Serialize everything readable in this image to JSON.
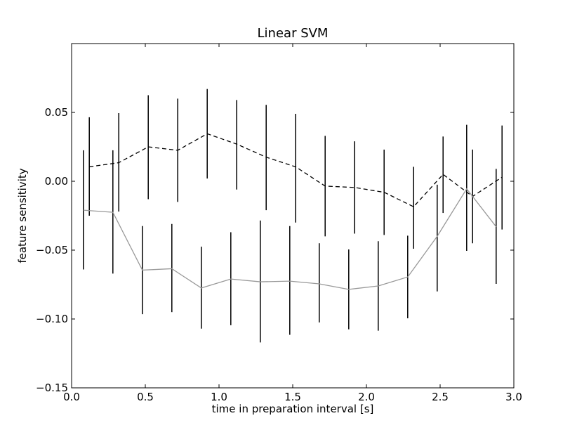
{
  "chart_data": {
    "type": "line",
    "title": "Linear SVM",
    "xlabel": "time in preparation interval [s]",
    "ylabel": "feature sensitivity",
    "xlim": [
      0.0,
      3.0
    ],
    "ylim": [
      -0.15,
      0.1
    ],
    "xticks": [
      0.0,
      0.5,
      1.0,
      1.5,
      2.0,
      2.5,
      3.0
    ],
    "xtick_labels": [
      "0.0",
      "0.5",
      "1.0",
      "1.5",
      "2.0",
      "2.5",
      "3.0"
    ],
    "yticks": [
      -0.15,
      -0.1,
      -0.05,
      0.0,
      0.05
    ],
    "ytick_labels": [
      "−0.15",
      "−0.10",
      "−0.05",
      "0.00",
      "0.05"
    ],
    "grid": false,
    "series": [
      {
        "style": "dashed",
        "color": "#000000",
        "x": [
          0.12,
          0.32,
          0.52,
          0.72,
          0.92,
          1.12,
          1.32,
          1.52,
          1.72,
          1.92,
          2.12,
          2.32,
          2.52,
          2.72,
          2.92
        ],
        "y": [
          0.0105,
          0.0135,
          0.025,
          0.0225,
          0.0345,
          0.027,
          0.0175,
          0.0105,
          -0.0035,
          -0.0045,
          -0.008,
          -0.0185,
          0.005,
          -0.011,
          0.003
        ],
        "err_low": [
          -0.025,
          -0.022,
          -0.013,
          -0.015,
          0.002,
          -0.006,
          -0.021,
          -0.03,
          -0.04,
          -0.038,
          -0.039,
          -0.049,
          -0.023,
          -0.045,
          -0.035
        ],
        "err_high": [
          0.0465,
          0.0495,
          0.0625,
          0.06,
          0.067,
          0.059,
          0.0555,
          0.049,
          0.033,
          0.029,
          0.023,
          0.0105,
          0.0325,
          0.023,
          0.0405
        ]
      },
      {
        "style": "solid",
        "color": "#999999",
        "x": [
          0.08,
          0.28,
          0.48,
          0.68,
          0.88,
          1.08,
          1.28,
          1.48,
          1.68,
          1.88,
          2.08,
          2.28,
          2.48,
          2.68,
          2.88
        ],
        "y": [
          -0.021,
          -0.0225,
          -0.0645,
          -0.0635,
          -0.0775,
          -0.071,
          -0.073,
          -0.0725,
          -0.0745,
          -0.0785,
          -0.076,
          -0.0695,
          -0.04,
          -0.0055,
          -0.033
        ],
        "err_low": [
          -0.064,
          -0.067,
          -0.0965,
          -0.095,
          -0.107,
          -0.1045,
          -0.117,
          -0.1115,
          -0.1025,
          -0.1075,
          -0.1085,
          -0.0995,
          -0.08,
          -0.0505,
          -0.0745
        ],
        "err_high": [
          0.0225,
          0.0225,
          -0.0325,
          -0.031,
          -0.0475,
          -0.037,
          -0.0285,
          -0.0325,
          -0.045,
          -0.0495,
          -0.0435,
          -0.0395,
          -0.0025,
          0.041,
          0.009
        ]
      }
    ]
  }
}
